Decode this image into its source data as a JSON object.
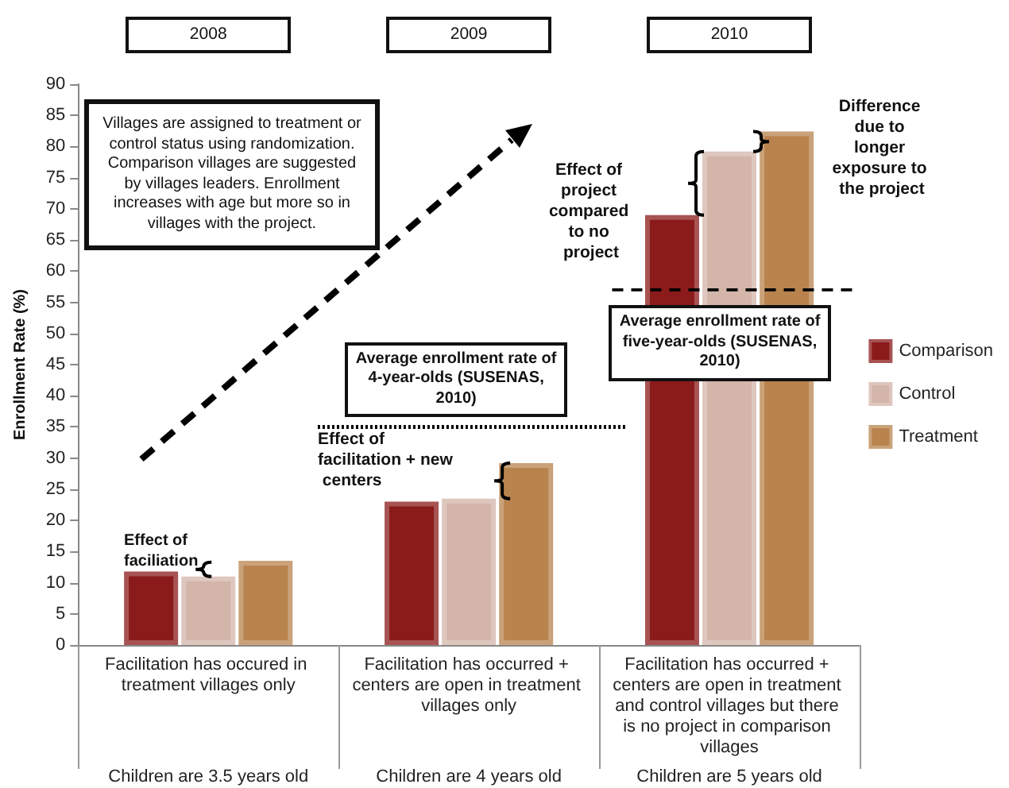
{
  "chart_data": {
    "type": "bar",
    "ylabel": "Enrollment Rate (%)",
    "categories": [
      "Facilitation has occured in treatment villages only",
      "Facilitation has occurred + centers are open in treatment villages only",
      "Facilitation has occurred + centers are open in treatment and control villages but there is no project in comparison villages"
    ],
    "series": [
      {
        "name": "Comparison",
        "color": "#8b1a1a",
        "values": [
          11.8,
          23.0,
          69.0
        ]
      },
      {
        "name": "Control",
        "color": "#d4b5aa",
        "values": [
          11.0,
          23.5,
          79.2
        ]
      },
      {
        "name": "Treatment",
        "color": "#b9834e",
        "values": [
          13.5,
          29.2,
          82.4
        ]
      }
    ],
    "ylim": [
      0,
      90
    ],
    "yticks": [
      0,
      5,
      10,
      15,
      20,
      25,
      30,
      35,
      40,
      45,
      50,
      55,
      60,
      65,
      70,
      75,
      80,
      85,
      90
    ],
    "ref_lines": [
      {
        "axis": "y",
        "value": 35,
        "label": "Average  enrollment rate of 4-year-olds (SUSENAS, 2010)",
        "line_style": "dotted",
        "color": "#000000"
      },
      {
        "axis": "y",
        "value": 57,
        "label": "Average  enrollment rate of five-year-olds (SUSENAS, 2010)",
        "line_style": "dashed",
        "color": "#000000"
      }
    ],
    "annotations": [
      "2008",
      "2009",
      "2010",
      "Children are 3.5 years old",
      "Children are 4 years old",
      "Children are 5 years old",
      "Villages are assigned to treatment or control status using randomization. Comparison villages are suggested by villages leaders. Enrollment increases with age but more so in villages with the project.",
      "Effect of faciliation",
      "Effect of facilitation + new centers",
      "Effect of project compared to no project",
      "Difference due to longer exposure to the project"
    ],
    "legend": "right",
    "grid": false
  }
}
